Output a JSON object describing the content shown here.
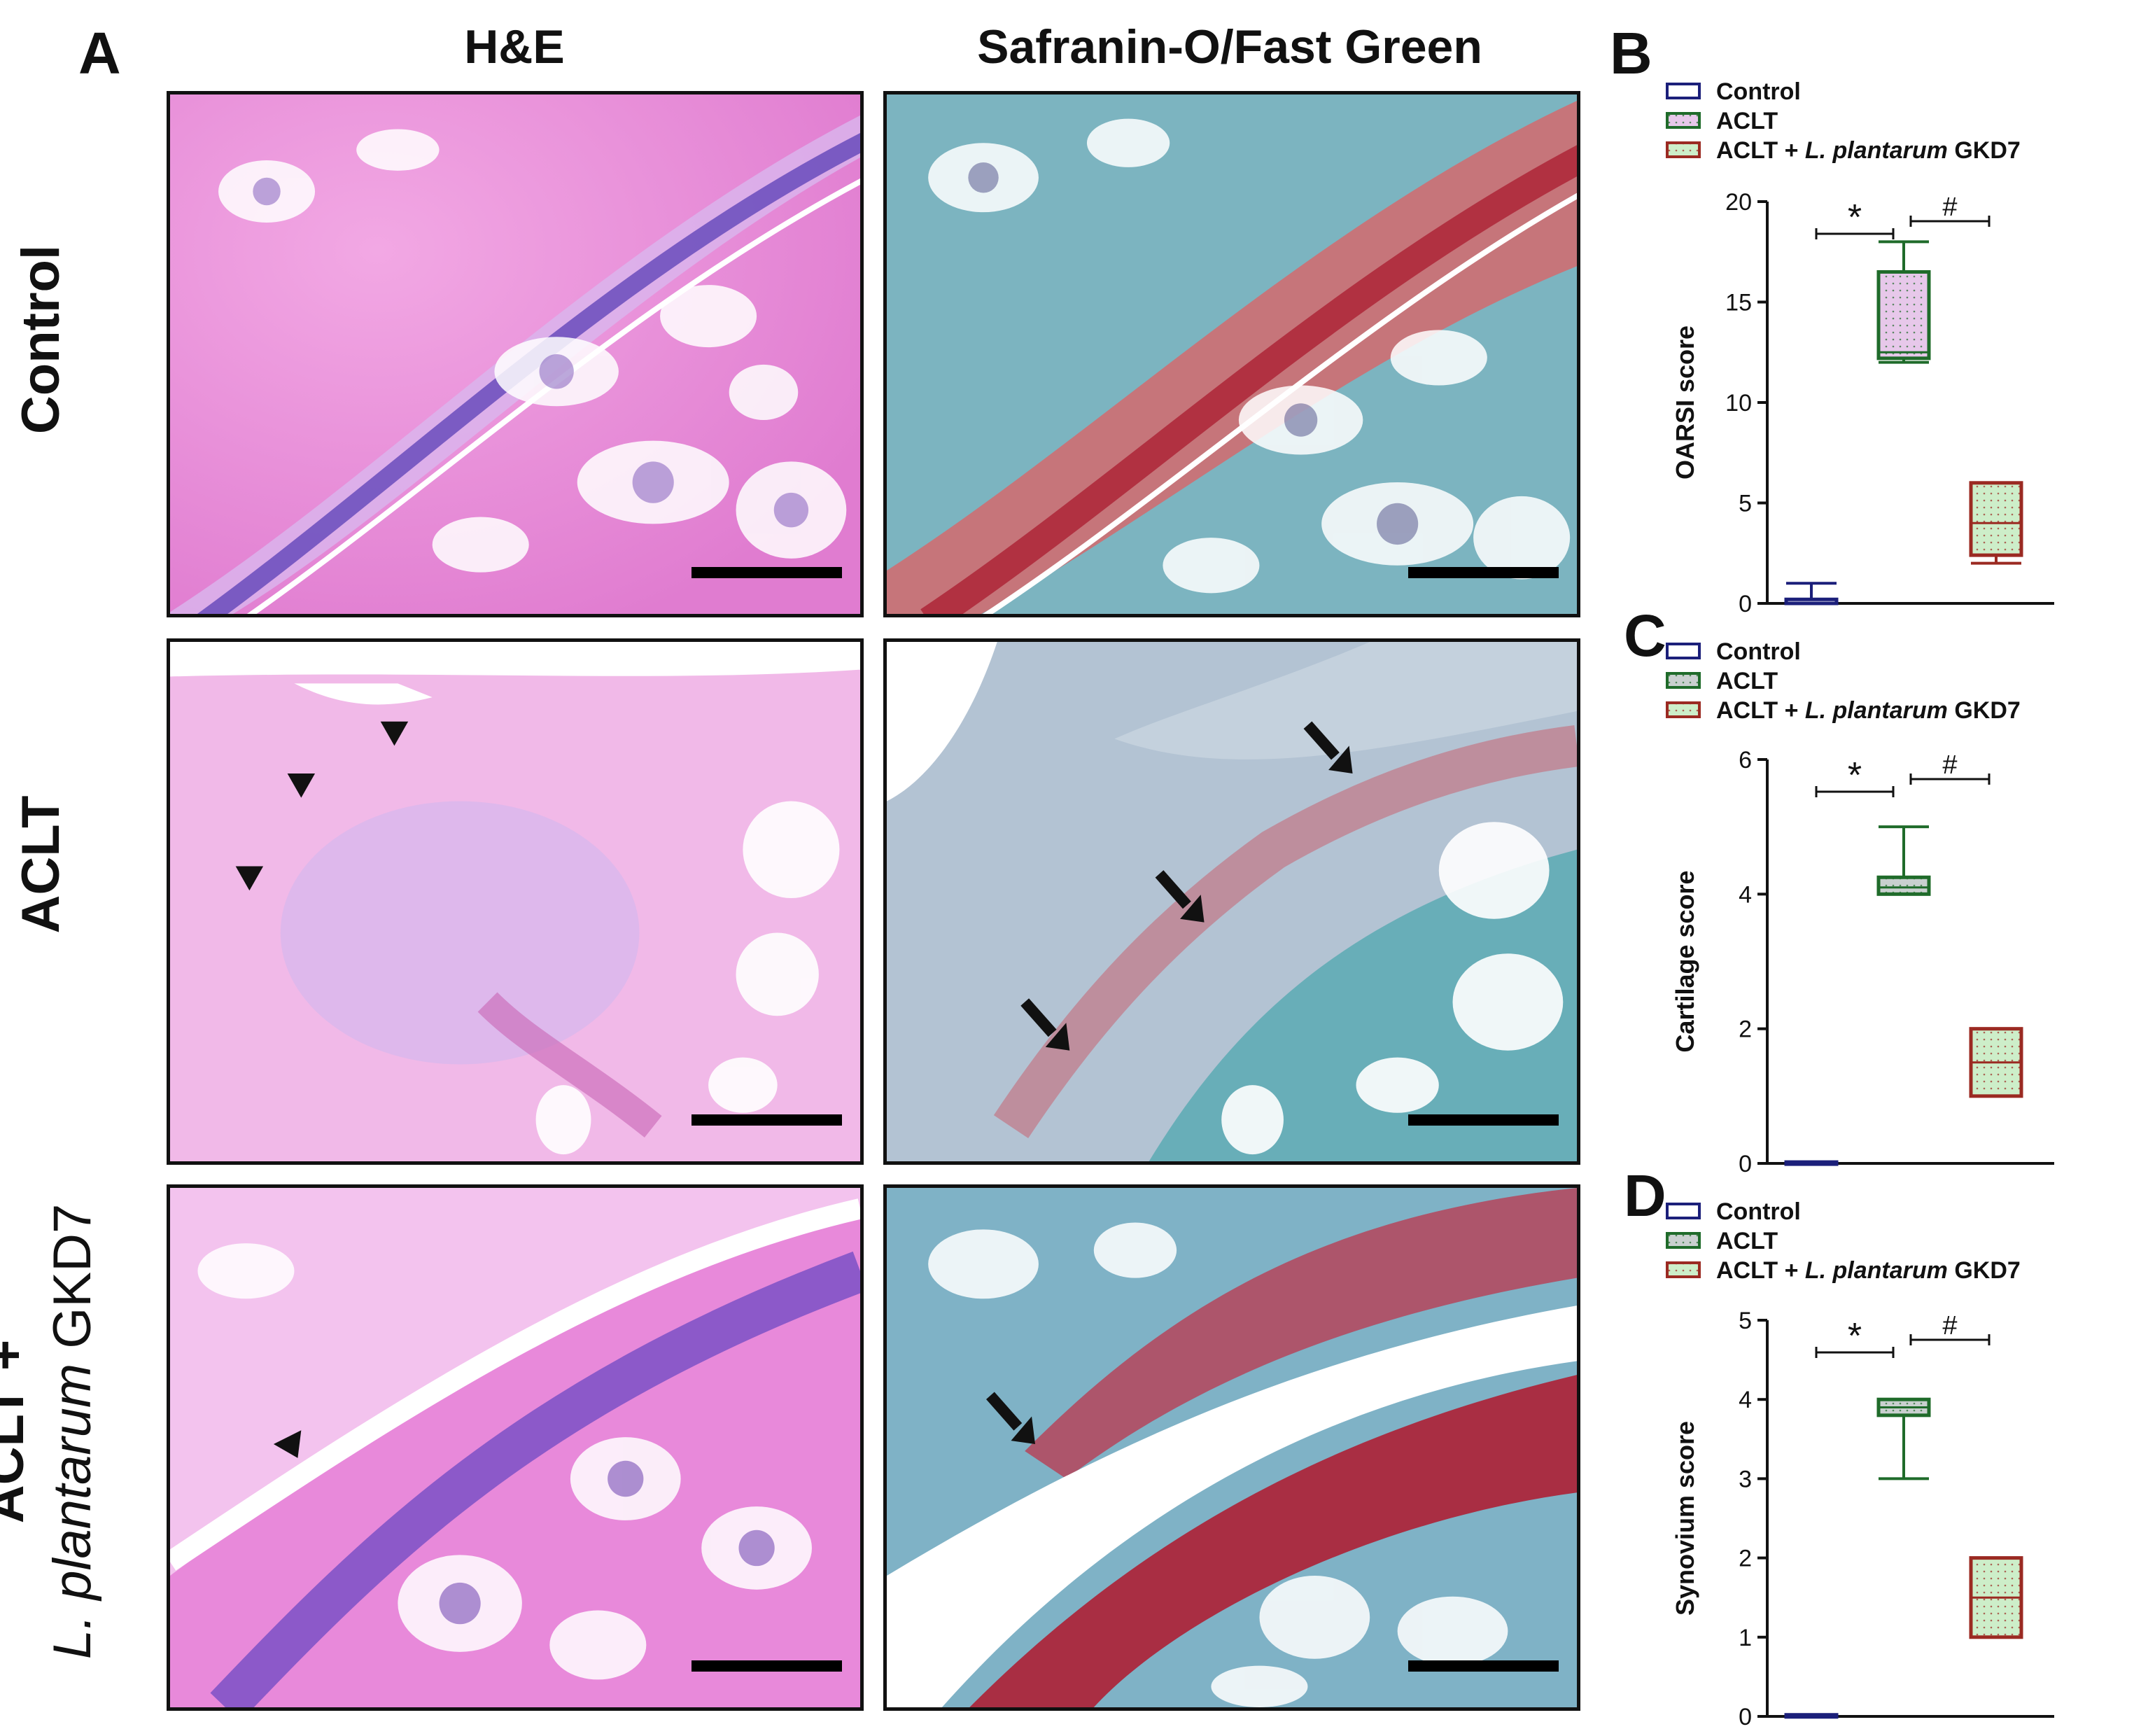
{
  "panel_labels": {
    "a": "A",
    "b": "B",
    "c": "C",
    "d": "D"
  },
  "columns": {
    "he": "H&E",
    "sofg": "Safranin-O/Fast Green"
  },
  "rows": {
    "control": "Control",
    "aclt": "ACLT",
    "treated_line1": "ACLT +",
    "treated_line2_italic": "L. plantarum",
    "treated_line2_rest": " GKD7"
  },
  "legend": {
    "control": "Control",
    "aclt": "ACLT",
    "treated_prefix": "ACLT + ",
    "treated_italic": "L. plantarum",
    "treated_suffix": " GKD7"
  },
  "colors": {
    "control": "#1b1f7a",
    "aclt": "#1f6b2a",
    "treated": "#9b2a22",
    "aclt_fill_b": "#e7c8ea",
    "aclt_fill_cd": "#c9d0cf",
    "treated_fill": "#cdeec9",
    "he_pink": "#e88fd8",
    "he_purple": "#6a4fc0",
    "sofg_blue": "#6aa6b5",
    "sofg_red": "#b3323c"
  },
  "significance": {
    "star": "*",
    "hash": "#"
  },
  "chart_data": [
    {
      "type": "box",
      "panel": "B",
      "ylabel": "OARSI score",
      "ylim": [
        0,
        20
      ],
      "yticks": [
        "0",
        "5",
        "10",
        "15",
        "20"
      ],
      "series": [
        {
          "name": "Control",
          "min": 0,
          "q1": 0,
          "median": 0,
          "q3": 0.2,
          "max": 1
        },
        {
          "name": "ACLT",
          "min": 12,
          "q1": 12.2,
          "median": 12.5,
          "q3": 16.5,
          "max": 18
        },
        {
          "name": "ACLT + L. plantarum GKD7",
          "min": 2,
          "q1": 2.4,
          "median": 4,
          "q3": 6,
          "max": 6
        }
      ]
    },
    {
      "type": "box",
      "panel": "C",
      "ylabel": "Cartilage score",
      "ylim": [
        0,
        6
      ],
      "yticks": [
        "0",
        "2",
        "4",
        "6"
      ],
      "series": [
        {
          "name": "Control",
          "min": 0,
          "q1": 0,
          "median": 0,
          "q3": 0.02,
          "max": 0.02
        },
        {
          "name": "ACLT",
          "min": 4,
          "q1": 4,
          "median": 4.1,
          "q3": 4.25,
          "max": 5
        },
        {
          "name": "ACLT + L. plantarum GKD7",
          "min": 1,
          "q1": 1,
          "median": 1.5,
          "q3": 2,
          "max": 2
        }
      ]
    },
    {
      "type": "box",
      "panel": "D",
      "ylabel": "Synovium score",
      "ylim": [
        0,
        5
      ],
      "yticks": [
        "0",
        "1",
        "2",
        "3",
        "4",
        "5"
      ],
      "series": [
        {
          "name": "Control",
          "min": 0,
          "q1": 0,
          "median": 0,
          "q3": 0.02,
          "max": 0.02
        },
        {
          "name": "ACLT",
          "min": 3,
          "q1": 3.8,
          "median": 3.9,
          "q3": 4,
          "max": 4
        },
        {
          "name": "ACLT + L. plantarum GKD7",
          "min": 1,
          "q1": 1,
          "median": 1.5,
          "q3": 2,
          "max": 2
        }
      ]
    }
  ]
}
